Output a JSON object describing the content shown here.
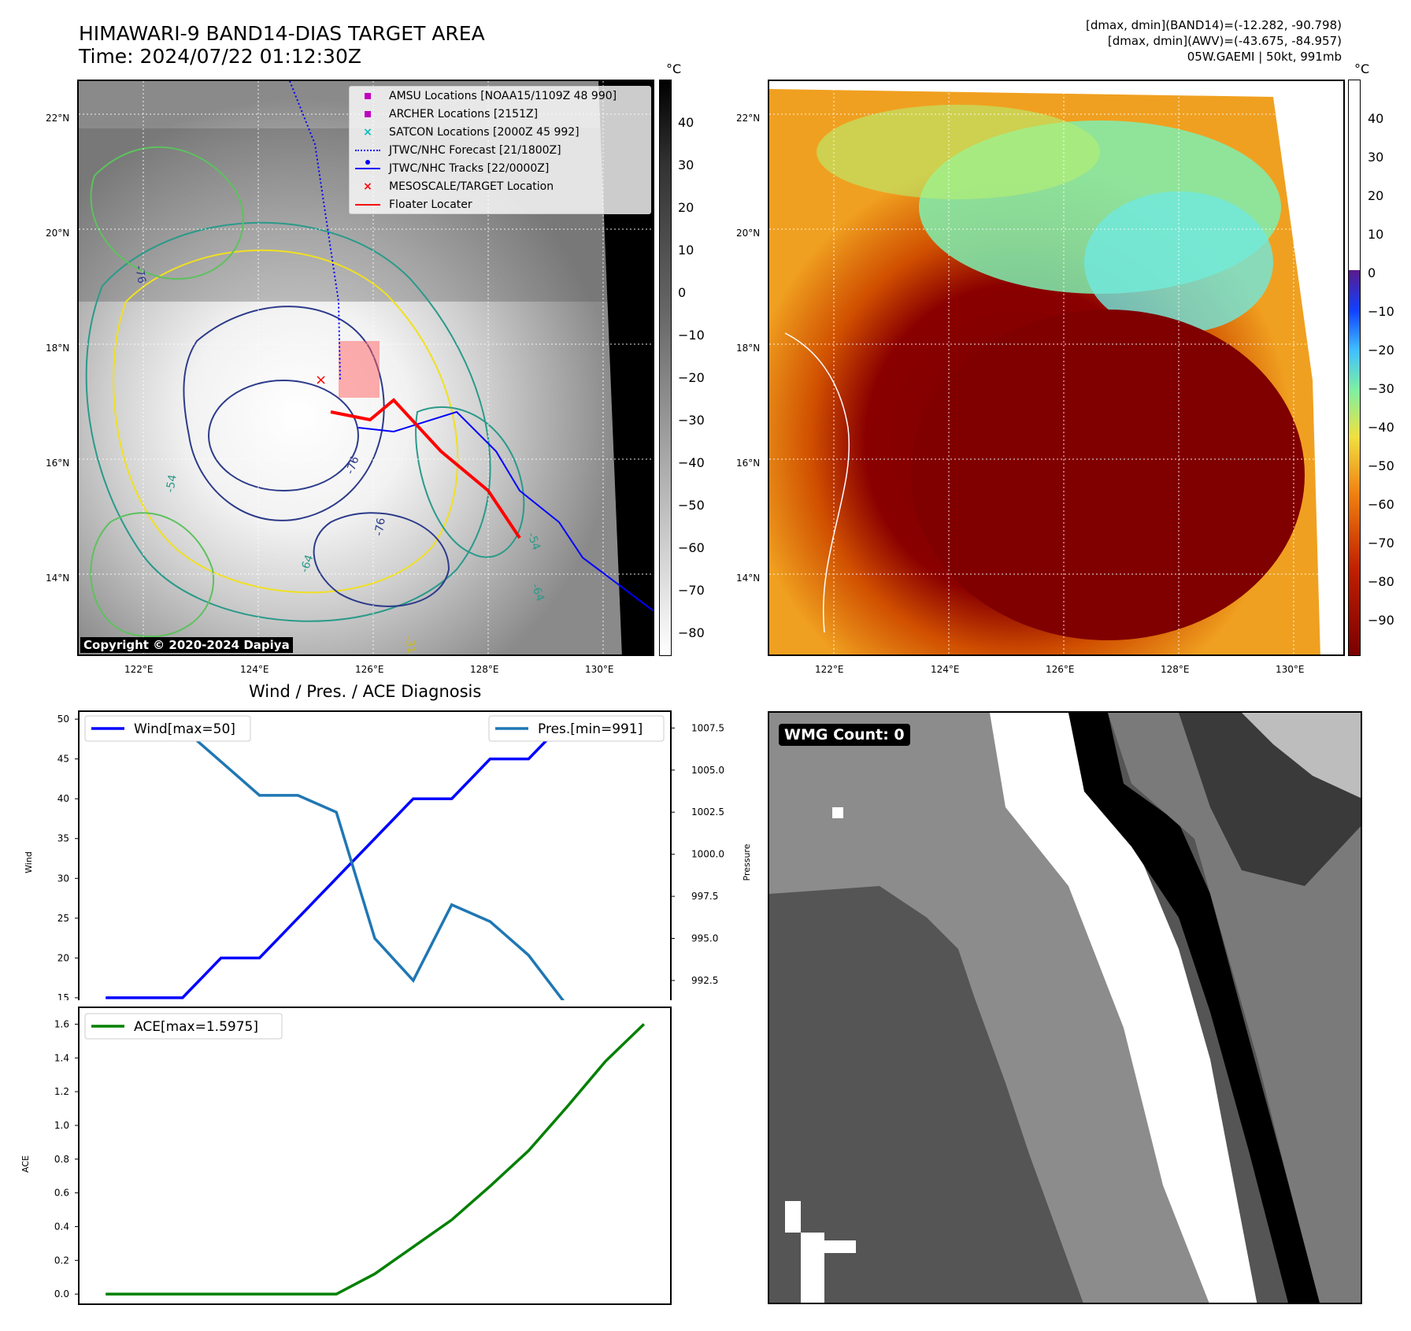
{
  "header": {
    "title_line1": "HIMAWARI-9 BAND14-DIAS TARGET AREA",
    "title_line2": "Time: 2024/07/22 01:12:30Z",
    "info_line1": "[dmax, dmin](BAND14)=(-12.282, -90.798)",
    "info_line2": "[dmax, dmin](AWV)=(-43.675, -84.957)",
    "info_line3": "05W.GAEMI | 50kt, 991mb"
  },
  "map_axes": {
    "lat_labels": [
      "22°N",
      "20°N",
      "18°N",
      "16°N",
      "14°N"
    ],
    "lon_labels": [
      "122°E",
      "124°E",
      "126°E",
      "128°E",
      "130°E"
    ]
  },
  "ir_panel": {
    "copyright": "Copyright © 2020-2024 Dapiya",
    "colorbar_unit": "°C",
    "colorbar_ticks": [
      "40",
      "30",
      "20",
      "10",
      "0",
      "−10",
      "−20",
      "−30",
      "−40",
      "−50",
      "−60",
      "−70",
      "−80"
    ],
    "contour_labels": [
      "-54",
      "-64",
      "-76",
      "-76",
      "-54",
      "-64",
      "-31",
      "-76"
    ],
    "legend": [
      {
        "label": "AMSU Locations [NOAA15/1109Z 48 990]",
        "icon": "magenta-square",
        "color": "#bf00bf"
      },
      {
        "label": "ARCHER Locations [2151Z]",
        "icon": "magenta-square",
        "color": "#bf00bf"
      },
      {
        "label": "SATCON Locations [2000Z 45 992]",
        "icon": "cyan-x",
        "color": "#00bfbf"
      },
      {
        "label": "JTWC/NHC Forecast [21/1800Z]",
        "icon": "blue-dotted-line",
        "color": "#0000ff"
      },
      {
        "label": "JTWC/NHC Tracks [22/0000Z]",
        "icon": "blue-line-dot",
        "color": "#0000ff"
      },
      {
        "label": "MESOSCALE/TARGET Location",
        "icon": "red-x",
        "color": "#ff0000"
      },
      {
        "label": "Floater Locater",
        "icon": "red-line",
        "color": "#ff0000"
      }
    ]
  },
  "awv_panel": {
    "colorbar_unit": "°C",
    "colorbar_ticks": [
      "40",
      "30",
      "20",
      "10",
      "0",
      "−10",
      "−20",
      "−30",
      "−40",
      "−50",
      "−60",
      "−70",
      "−80",
      "−90"
    ]
  },
  "wmg_panel": {
    "label": "WMG Count: 0"
  },
  "chart_data": [
    {
      "type": "line",
      "title": "Wind / Pres. / ACE Diagnosis",
      "x": [
        0,
        1,
        2,
        3,
        4,
        5,
        6,
        7,
        8,
        9,
        10,
        11,
        12,
        13,
        14
      ],
      "series": [
        {
          "name": "Wind[max=50]",
          "axis": "left",
          "color": "#0000ff",
          "values": [
            15,
            15,
            15,
            20,
            20,
            25,
            30,
            35,
            40,
            40,
            45,
            45,
            50,
            50,
            50
          ]
        },
        {
          "name": "Pres.[min=991]",
          "axis": "right",
          "color": "#1f77b4",
          "values": [
            1008,
            1007.5,
            1007.5,
            1005.5,
            1003.5,
            1003.5,
            1002.5,
            995,
            992.5,
            997,
            996,
            994,
            991,
            991,
            991
          ]
        }
      ],
      "ylabel": "Wind",
      "ylabel_right": "Pressure",
      "yticks": [
        "50",
        "45",
        "40",
        "35",
        "30",
        "25",
        "20",
        "15"
      ],
      "yticks_right": [
        "1007.5",
        "1005.0",
        "1002.5",
        "1000.0",
        "997.5",
        "995.0",
        "992.5"
      ],
      "ylim": [
        14,
        51
      ],
      "ylim_right": [
        991,
        1008.5
      ]
    },
    {
      "type": "line",
      "series": [
        {
          "name": "ACE[max=1.5975]",
          "color": "#008000",
          "values": [
            0,
            0,
            0,
            0,
            0,
            0,
            0,
            0.12,
            0.28,
            0.44,
            0.64,
            0.85,
            1.11,
            1.38,
            1.6
          ]
        }
      ],
      "x": [
        0,
        1,
        2,
        3,
        4,
        5,
        6,
        7,
        8,
        9,
        10,
        11,
        12,
        13,
        14
      ],
      "ylabel": "ACE",
      "yticks": [
        "1.6",
        "1.4",
        "1.2",
        "1.0",
        "0.8",
        "0.6",
        "0.4",
        "0.2",
        "0.0"
      ],
      "ylim": [
        -0.06,
        1.7
      ]
    }
  ]
}
